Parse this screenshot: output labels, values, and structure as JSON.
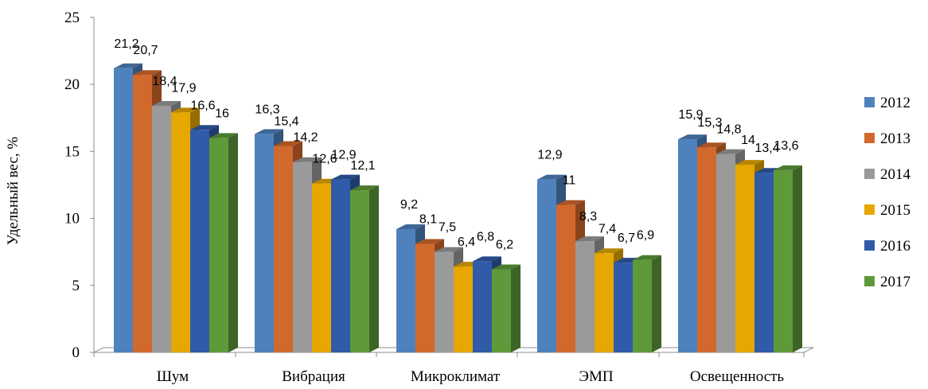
{
  "chart_data": {
    "type": "bar",
    "style": "3d-clustered-column",
    "ylabel": "Удельный вес, %",
    "xlabel": "",
    "ylim": [
      0,
      25
    ],
    "yticks": [
      0,
      5,
      10,
      15,
      20,
      25
    ],
    "categories": [
      "Шум",
      "Вибрация",
      "Микроклимат",
      "ЭМП",
      "Освещенность"
    ],
    "series": [
      {
        "name": "2012",
        "color": "#4F81BD",
        "values": [
          21.2,
          16.3,
          9.2,
          12.9,
          15.9
        ],
        "labels": [
          "21,2",
          "16,3",
          "9,2",
          "12,9",
          "15,9"
        ]
      },
      {
        "name": "2013",
        "color": "#D2692C",
        "values": [
          20.7,
          15.4,
          8.1,
          11,
          15.3
        ],
        "labels": [
          "20,7",
          "15,4",
          "8,1",
          "11",
          "15,3"
        ]
      },
      {
        "name": "2014",
        "color": "#9A9A9A",
        "values": [
          18.4,
          14.2,
          7.5,
          8.3,
          14.8
        ],
        "labels": [
          "18,4",
          "14,2",
          "7,5",
          "8,3",
          "14,8"
        ]
      },
      {
        "name": "2015",
        "color": "#E5A700",
        "values": [
          17.9,
          12.6,
          6.4,
          7.4,
          14
        ],
        "labels": [
          "17,9",
          "12,6",
          "6,4",
          "7,4",
          "14"
        ]
      },
      {
        "name": "2016",
        "color": "#2F5BA8",
        "values": [
          16.6,
          12.9,
          6.8,
          6.7,
          13.4
        ],
        "labels": [
          "16,6",
          "12,9",
          "6,8",
          "6,7",
          "13,4"
        ]
      },
      {
        "name": "2017",
        "color": "#5E9A3A",
        "values": [
          16,
          12.1,
          6.2,
          6.9,
          13.6
        ],
        "labels": [
          "16",
          "12,1",
          "6,2",
          "6,9",
          "13,6"
        ]
      }
    ],
    "legend": "right",
    "grid": false
  }
}
